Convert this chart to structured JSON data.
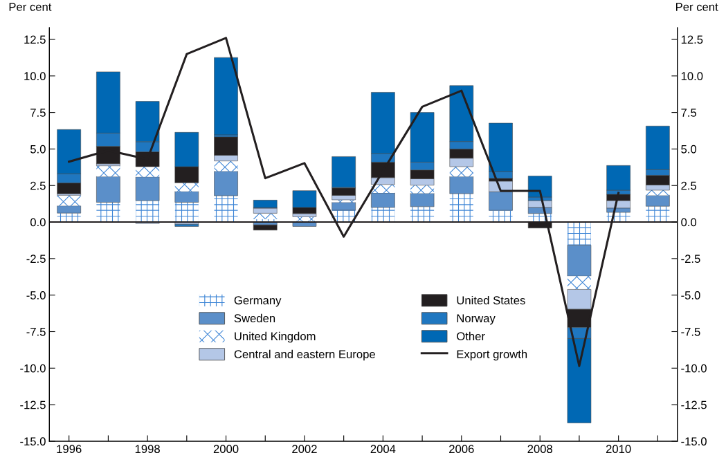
{
  "chart_data": {
    "type": "bar",
    "stacked": true,
    "categories": [
      "1996",
      null,
      "1998",
      null,
      "2000",
      null,
      "2002",
      null,
      "2004",
      null,
      "2006",
      null,
      "2008",
      null,
      "2010",
      null
    ],
    "ylabel": "Per cent",
    "y2label": "Per cent",
    "ylim": [
      -15,
      13.3
    ],
    "y2lim": [
      -15,
      13.3
    ],
    "yticks": [
      {
        "value": -15,
        "label": "-15.0"
      },
      {
        "value": -12.5,
        "label": "-12.5"
      },
      {
        "value": -10,
        "label": "-10.0"
      },
      {
        "value": -7.5,
        "label": "-7.5"
      },
      {
        "value": -5,
        "label": "-5.0"
      },
      {
        "value": -2.5,
        "label": "-2.5"
      },
      {
        "value": 0,
        "label": "0.0"
      },
      {
        "value": 2.5,
        "label": "2.5"
      },
      {
        "value": 5,
        "label": "5.0"
      },
      {
        "value": 7.5,
        "label": "7.5"
      },
      {
        "value": 10,
        "label": "10.0"
      },
      {
        "value": 12.5,
        "label": "12.5"
      }
    ],
    "y2ticks": [
      {
        "value": -15,
        "label": "-15.0"
      },
      {
        "value": -12.5,
        "label": "-12.5"
      },
      {
        "value": -10,
        "label": "-10.0"
      },
      {
        "value": -7.5,
        "label": "-7.5"
      },
      {
        "value": -5,
        "label": "-5.0"
      },
      {
        "value": -2.5,
        "label": "-2.5"
      },
      {
        "value": 0,
        "label": "0.0"
      },
      {
        "value": 2.5,
        "label": "2.5"
      },
      {
        "value": 5,
        "label": "5.0"
      },
      {
        "value": 7.5,
        "label": "7.5"
      },
      {
        "value": 10,
        "label": "10.0"
      },
      {
        "value": 12.5,
        "label": "12.5"
      }
    ],
    "grid": false,
    "legend": "bottom",
    "ref_lines": [
      {
        "axis": "y",
        "value": 0,
        "color": "#231f20"
      }
    ],
    "series": [
      {
        "name": "Germany",
        "color": "#ffffff",
        "values": [
          0.61,
          1.35,
          1.46,
          1.35,
          1.8,
          0.2,
          0.1,
          0.81,
          1.0,
          1.05,
          1.94,
          0.8,
          0.58,
          -1.58,
          0.66,
          1.08
        ]
      },
      {
        "name": "Sweden",
        "color": "#5b8fc9",
        "values": [
          0.5,
          1.77,
          1.63,
          0.75,
          1.68,
          -0.2,
          -0.3,
          0.54,
          0.99,
          0.92,
          1.18,
          1.27,
          0.42,
          -2.12,
          0.3,
          0.75
        ]
      },
      {
        "name": "United Kingdom",
        "color": "#ffffff",
        "values": [
          0.72,
          0.73,
          0.7,
          0.59,
          0.7,
          0.4,
          0.26,
          0.17,
          0.58,
          0.55,
          0.67,
          -0.05,
          0,
          -0.91,
          0,
          0.35
        ]
      },
      {
        "name": "Central and eastern Europe",
        "color": "#b4c7e7",
        "values": [
          0.11,
          0.14,
          -0.1,
          -0.15,
          0.39,
          0.35,
          0.22,
          0.31,
          0.47,
          0.44,
          0.58,
          0.73,
          0.47,
          -1.36,
          0.51,
          0.36
        ]
      },
      {
        "name": "United States",
        "color": "#231f20",
        "values": [
          0.74,
          1.19,
          1.02,
          1.1,
          1.26,
          -0.35,
          0.42,
          0.5,
          1.06,
          0.6,
          0.63,
          0.19,
          -0.41,
          -1.25,
          0.43,
          0.66
        ]
      },
      {
        "name": "Norway",
        "color": "#1f77c0",
        "values": [
          0.62,
          0.91,
          0.69,
          -0.15,
          0.14,
          0.05,
          0,
          0.05,
          0.58,
          0.54,
          0.51,
          0.47,
          0.24,
          -0.75,
          0.28,
          0.39
        ]
      },
      {
        "name": "Other",
        "color": "#0068b4",
        "values": [
          3.03,
          4.19,
          2.76,
          2.35,
          5.29,
          0.5,
          1.15,
          2.1,
          4.2,
          3.4,
          3.83,
          3.31,
          1.44,
          -5.78,
          1.69,
          2.98
        ]
      },
      {
        "name": "Export growth",
        "type": "line",
        "color": "#231f20",
        "values": [
          4.13,
          4.9,
          4.3,
          11.5,
          12.6,
          3.0,
          4.03,
          -1.0,
          3.5,
          7.89,
          8.99,
          2.13,
          2.13,
          -9.85,
          2.0,
          null
        ]
      }
    ]
  }
}
